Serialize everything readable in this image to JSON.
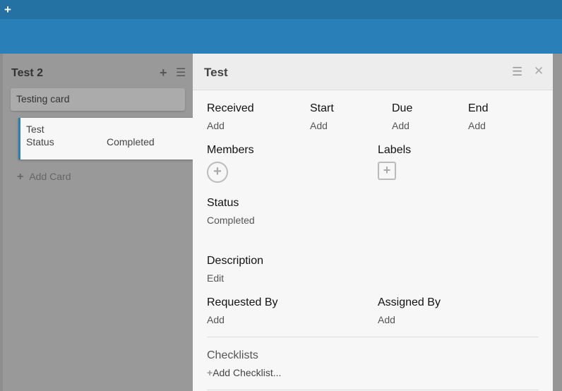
{
  "topbar": {
    "add_icon": "plus-icon"
  },
  "list": {
    "title": "Test 2",
    "add_icon": "plus-icon",
    "menu_icon": "hamburger-icon",
    "cards": [
      {
        "title": "Testing card"
      },
      {
        "title": "Test",
        "field_label": "Status",
        "field_value": "Completed",
        "accent": "#2980b9"
      }
    ],
    "add_card": "Add Card"
  },
  "detail": {
    "title": "Test",
    "menu_icon": "hamburger-icon",
    "close_icon": "close-icon",
    "dates": [
      {
        "label": "Received",
        "value": "Add"
      },
      {
        "label": "Start",
        "value": "Add"
      },
      {
        "label": "Due",
        "value": "Add"
      },
      {
        "label": "End",
        "value": "Add"
      }
    ],
    "members_label": "Members",
    "labels_label": "Labels",
    "status_label": "Status",
    "status_value": "Completed",
    "description_label": "Description",
    "description_value": "Edit",
    "requested_by_label": "Requested By",
    "requested_by_value": "Add",
    "assigned_by_label": "Assigned By",
    "assigned_by_value": "Add",
    "checklists_label": "Checklists",
    "add_checklist": "Add Checklist..."
  }
}
